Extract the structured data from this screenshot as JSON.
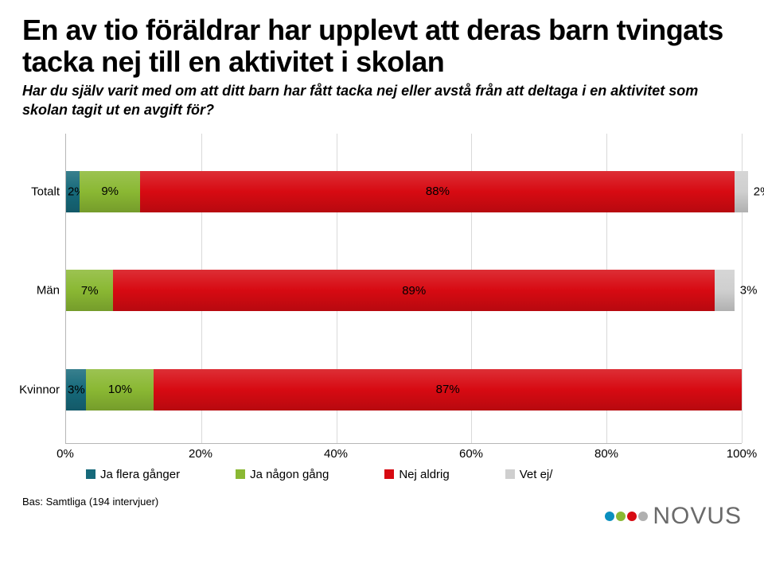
{
  "title": "En av tio föräldrar har upplevt att deras barn tvingats tacka nej till en aktivitet i skolan",
  "subtitle": "Har du själv varit med om att ditt barn har fått tacka nej eller avstå från att deltaga i en aktivitet som skolan tagit ut en avgift för?",
  "chart": {
    "type": "stacked-bar-horizontal",
    "background_color": "#ffffff",
    "grid_color": "#d9d9d9",
    "border_color": "#b6b6b6",
    "xlim": [
      0,
      100
    ],
    "xtick_step": 20,
    "xtick_labels": [
      "0%",
      "20%",
      "40%",
      "60%",
      "80%",
      "100%"
    ],
    "category_fontsize": 15,
    "value_fontsize": 15,
    "bar_height_ratio": 0.4,
    "rows": [
      {
        "label": "Totalt",
        "top_pct": 12,
        "segments": [
          {
            "value": 2,
            "label": "2%",
            "color": "#16697a",
            "label_pos": "left"
          },
          {
            "value": 9,
            "label": "9%",
            "color": "#8ab833",
            "label_pos": "center"
          },
          {
            "value": 88,
            "label": "88%",
            "color": "#d70a12",
            "label_pos": "center"
          },
          {
            "value": 2,
            "label": "2%",
            "color": "#cfcfcf",
            "label_pos": "right"
          }
        ]
      },
      {
        "label": "Män",
        "top_pct": 44,
        "segments": [
          {
            "value": 7,
            "label": "7%",
            "color": "#8ab833",
            "label_pos": "center"
          },
          {
            "value": 89,
            "label": "89%",
            "color": "#d70a12",
            "label_pos": "center"
          },
          {
            "value": 3,
            "label": "3%",
            "color": "#cfcfcf",
            "label_pos": "right"
          }
        ]
      },
      {
        "label": "Kvinnor",
        "top_pct": 76,
        "segments": [
          {
            "value": 3,
            "label": "3%",
            "color": "#16697a",
            "label_pos": "left"
          },
          {
            "value": 10,
            "label": "10%",
            "color": "#8ab833",
            "label_pos": "center"
          },
          {
            "value": 87,
            "label": "87%",
            "color": "#d70a12",
            "label_pos": "center"
          }
        ]
      }
    ],
    "legend": [
      {
        "label": "Ja flera gånger",
        "color": "#16697a"
      },
      {
        "label": "Ja någon gång",
        "color": "#8ab833"
      },
      {
        "label": "Nej aldrig",
        "color": "#d70a12"
      },
      {
        "label": "Vet ej/",
        "color": "#cfcfcf"
      }
    ]
  },
  "base_note": "Bas: Samtliga (194 intervjuer)",
  "logo": {
    "dots": [
      "#0a8fbf",
      "#8ab833",
      "#d70a12",
      "#b0b0b0"
    ],
    "text": "NOVUS",
    "text_color": "#6a6a6a"
  }
}
